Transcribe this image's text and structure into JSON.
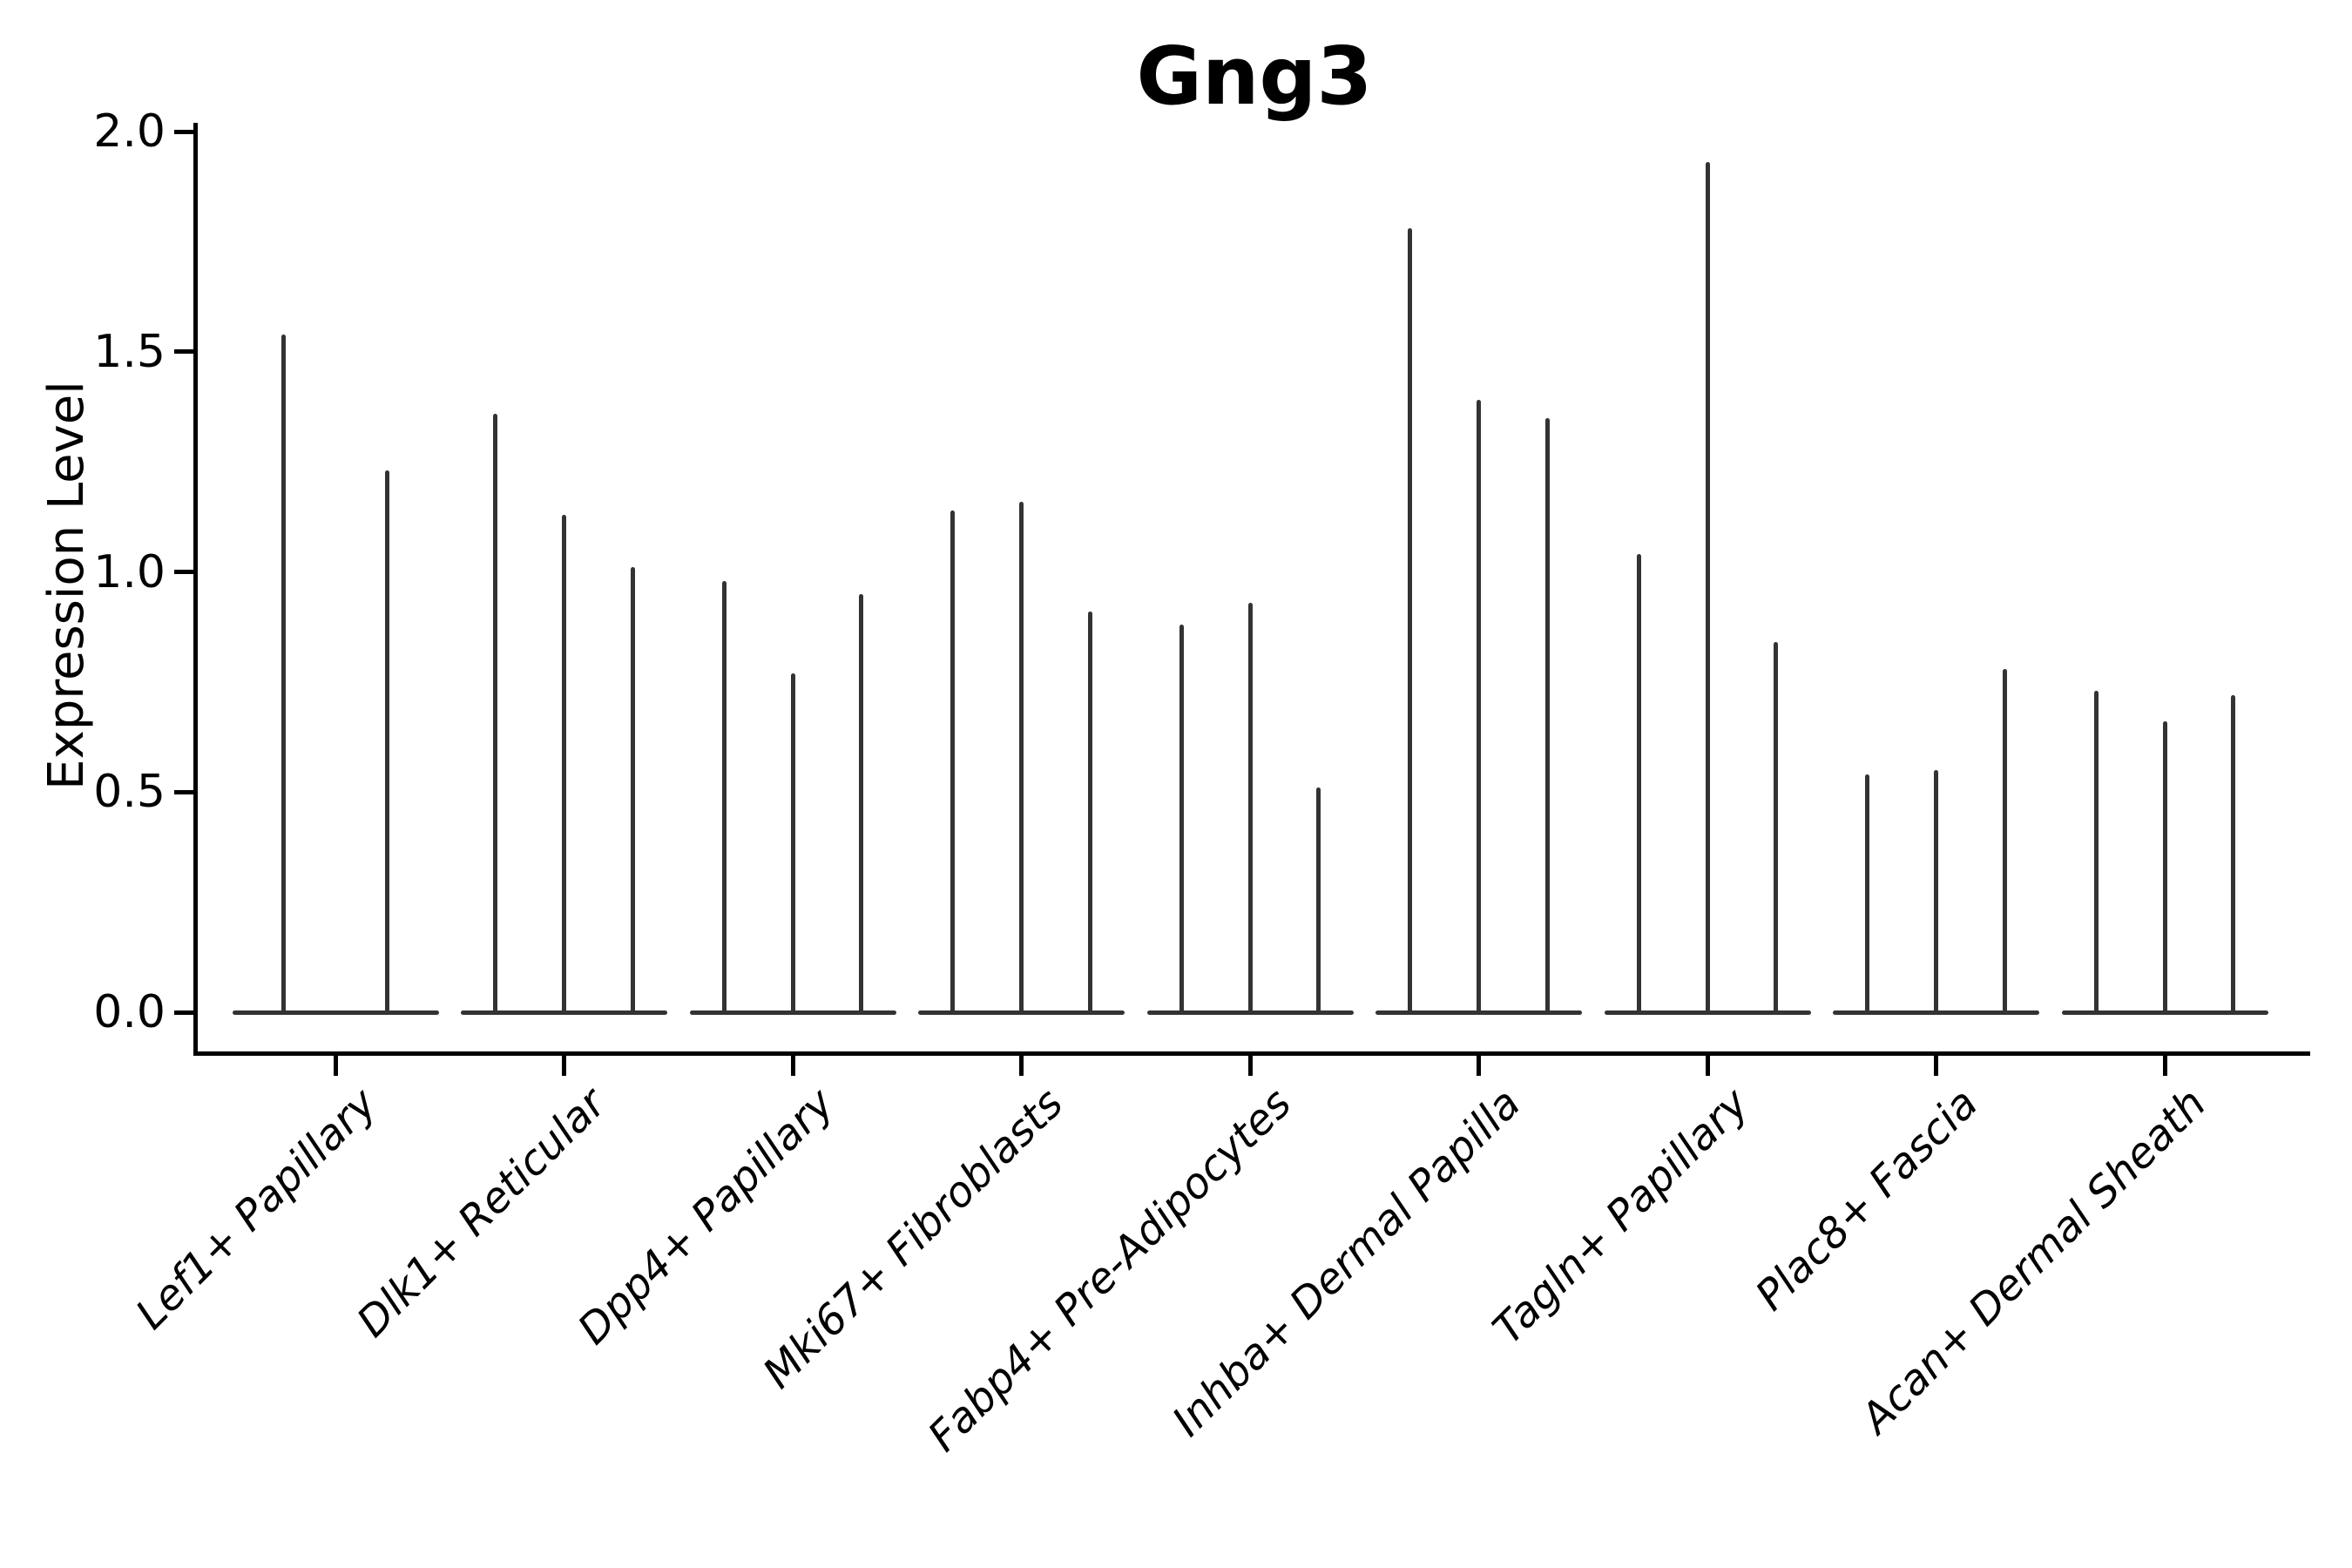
{
  "chart_data": {
    "type": "violin",
    "title": "Gng3",
    "ylabel": "Expression Level",
    "xlabel": "",
    "ylim": [
      0.0,
      2.0
    ],
    "ytick_values": [
      0.0,
      0.5,
      1.0,
      1.5,
      2.0
    ],
    "ytick_labels": [
      "0.0",
      "0.5",
      "1.0",
      "1.5",
      "2.0"
    ],
    "grid": false,
    "legend": "none",
    "xtick_rotation_deg": 45,
    "violin_shape_note": "sparse expression: each violin is a flat base at 0 with a thin spike rising to its maximum value",
    "categories": [
      "Lef1+ Papillary",
      "Dlk1+ Reticular",
      "Dpp4+ Papillary",
      "Mki67+ Fibroblasts",
      "Fabp4+ Pre-Adipocytes",
      "Inhba+ Dermal Papilla",
      "Tagln+ Papillary",
      "Plac8+ Fascia",
      "Acan+ Dermal Sheath"
    ],
    "groups": [
      {
        "category": "Lef1+ Papillary",
        "spike_max_values": [
          1.54,
          1.23
        ]
      },
      {
        "category": "Dlk1+ Reticular",
        "spike_max_values": [
          1.36,
          1.13,
          1.01
        ]
      },
      {
        "category": "Dpp4+ Papillary",
        "spike_max_values": [
          0.98,
          0.77,
          0.95
        ]
      },
      {
        "category": "Mki67+ Fibroblasts",
        "spike_max_values": [
          1.14,
          1.16,
          0.91
        ]
      },
      {
        "category": "Fabp4+ Pre-Adipocytes",
        "spike_max_values": [
          0.88,
          0.93,
          0.51
        ]
      },
      {
        "category": "Inhba+ Dermal Papilla",
        "spike_max_values": [
          1.78,
          1.39,
          1.35
        ]
      },
      {
        "category": "Tagln+ Papillary",
        "spike_max_values": [
          1.04,
          1.93,
          0.84
        ]
      },
      {
        "category": "Plac8+ Fascia",
        "spike_max_values": [
          0.54,
          0.55,
          0.78
        ]
      },
      {
        "category": "Acan+ Dermal Sheath",
        "spike_max_values": [
          0.73,
          0.66,
          0.72
        ]
      }
    ],
    "colors": {
      "violin": "#333333",
      "axis": "#000000",
      "text": "#000000",
      "background": "#ffffff"
    }
  }
}
